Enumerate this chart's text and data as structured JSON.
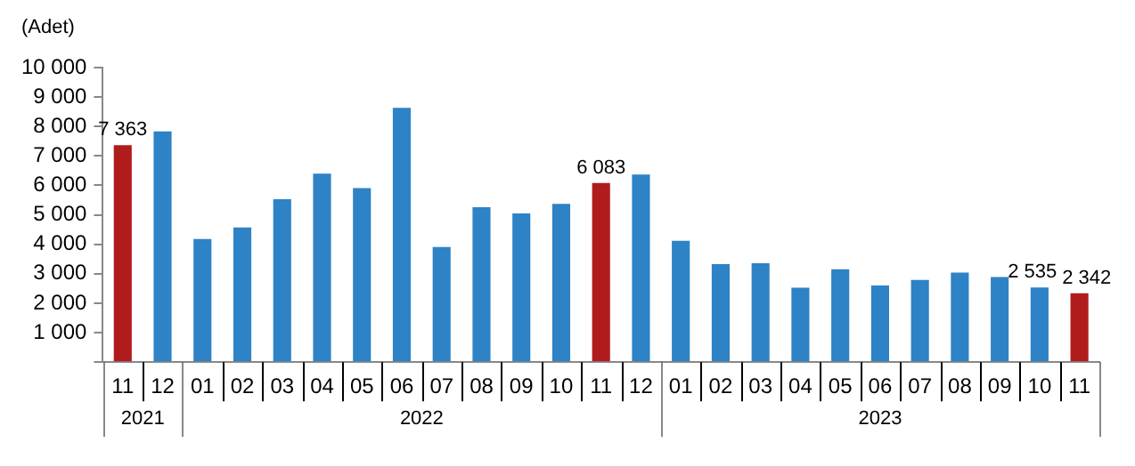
{
  "chart_data": {
    "type": "bar",
    "ylabel": "(Adet)",
    "categories": [
      "11",
      "12",
      "01",
      "02",
      "03",
      "04",
      "05",
      "06",
      "07",
      "08",
      "09",
      "10",
      "11",
      "12",
      "01",
      "02",
      "03",
      "04",
      "05",
      "06",
      "07",
      "08",
      "09",
      "10",
      "11"
    ],
    "values": [
      7363,
      7830,
      4180,
      4570,
      5530,
      6400,
      5910,
      8630,
      3910,
      5260,
      5050,
      5370,
      6083,
      6370,
      4120,
      3330,
      3360,
      2530,
      3150,
      2600,
      2790,
      3040,
      2890,
      2535,
      2342
    ],
    "colors": [
      "#b01c1c",
      "#2e82c6",
      "#2e82c6",
      "#2e82c6",
      "#2e82c6",
      "#2e82c6",
      "#2e82c6",
      "#2e82c6",
      "#2e82c6",
      "#2e82c6",
      "#2e82c6",
      "#2e82c6",
      "#b01c1c",
      "#2e82c6",
      "#2e82c6",
      "#2e82c6",
      "#2e82c6",
      "#2e82c6",
      "#2e82c6",
      "#2e82c6",
      "#2e82c6",
      "#2e82c6",
      "#2e82c6",
      "#2e82c6",
      "#b01c1c"
    ],
    "value_labels": [
      "7 363",
      null,
      null,
      null,
      null,
      null,
      null,
      null,
      null,
      null,
      null,
      null,
      "6 083",
      null,
      null,
      null,
      null,
      null,
      null,
      null,
      null,
      null,
      null,
      "2 535",
      "2 342"
    ],
    "ylim": [
      0,
      10000
    ],
    "yticks": [
      {
        "value": 0,
        "label": null
      },
      {
        "value": 1000,
        "label": "1 000"
      },
      {
        "value": 2000,
        "label": "2 000"
      },
      {
        "value": 3000,
        "label": "3 000"
      },
      {
        "value": 4000,
        "label": "4 000"
      },
      {
        "value": 5000,
        "label": "5 000"
      },
      {
        "value": 6000,
        "label": "6 000"
      },
      {
        "value": 7000,
        "label": "7 000"
      },
      {
        "value": 8000,
        "label": "8 000"
      },
      {
        "value": 9000,
        "label": "9 000"
      },
      {
        "value": 10000,
        "label": "10 000"
      }
    ],
    "annotations": [
      "2021",
      "2022",
      "2023"
    ],
    "legend": false
  }
}
